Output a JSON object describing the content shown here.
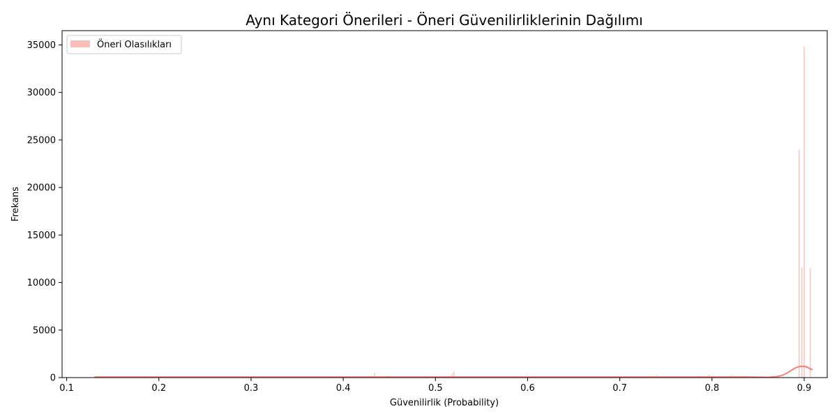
{
  "chart_data": {
    "type": "histogram",
    "title": "Aynı Kategori Önerileri - Öneri Güvenilirliklerinin Dağılımı",
    "xlabel": "Güvenilirlik (Probability)",
    "ylabel": "Frekans",
    "xlim": [
      0.095,
      0.925
    ],
    "ylim": [
      0,
      36500
    ],
    "x_ticks": [
      0.1,
      0.2,
      0.3,
      0.4,
      0.5,
      0.6,
      0.7,
      0.8,
      0.9
    ],
    "x_tick_labels": [
      "0.1",
      "0.2",
      "0.3",
      "0.4",
      "0.5",
      "0.6",
      "0.7",
      "0.8",
      "0.9"
    ],
    "y_ticks": [
      0,
      5000,
      10000,
      15000,
      20000,
      25000,
      30000,
      35000
    ],
    "y_tick_labels": [
      "0",
      "5000",
      "10000",
      "15000",
      "20000",
      "25000",
      "30000",
      "35000"
    ],
    "legend": {
      "position": "top-left",
      "entries": [
        {
          "label": "Öneri Olasılıkları",
          "color": "#fa8072"
        }
      ]
    },
    "grid": false,
    "colors": {
      "bar": "#fa8072",
      "kde": "#fa8072"
    },
    "series": [
      {
        "name": "Öneri Olasılıkları",
        "kind": "bars",
        "bins": [
          {
            "x": 0.434,
            "y": 500
          },
          {
            "x": 0.448,
            "y": 200
          },
          {
            "x": 0.518,
            "y": 400
          },
          {
            "x": 0.52,
            "y": 650
          },
          {
            "x": 0.592,
            "y": 150
          },
          {
            "x": 0.74,
            "y": 250
          },
          {
            "x": 0.786,
            "y": 200
          },
          {
            "x": 0.797,
            "y": 300
          },
          {
            "x": 0.821,
            "y": 250
          },
          {
            "x": 0.834,
            "y": 200
          },
          {
            "x": 0.8945,
            "y": 24000
          },
          {
            "x": 0.8975,
            "y": 11600
          },
          {
            "x": 0.9,
            "y": 34800
          },
          {
            "x": 0.9065,
            "y": 11500
          }
        ]
      },
      {
        "name": "KDE",
        "kind": "line",
        "points": [
          [
            0.13,
            60
          ],
          [
            0.3,
            60
          ],
          [
            0.5,
            60
          ],
          [
            0.7,
            60
          ],
          [
            0.8,
            60
          ],
          [
            0.84,
            60
          ],
          [
            0.86,
            40
          ],
          [
            0.87,
            100
          ],
          [
            0.875,
            200
          ],
          [
            0.88,
            400
          ],
          [
            0.885,
            700
          ],
          [
            0.89,
            1000
          ],
          [
            0.895,
            1170
          ],
          [
            0.9,
            1190
          ],
          [
            0.903,
            1100
          ],
          [
            0.906,
            950
          ],
          [
            0.909,
            820
          ]
        ]
      }
    ]
  }
}
